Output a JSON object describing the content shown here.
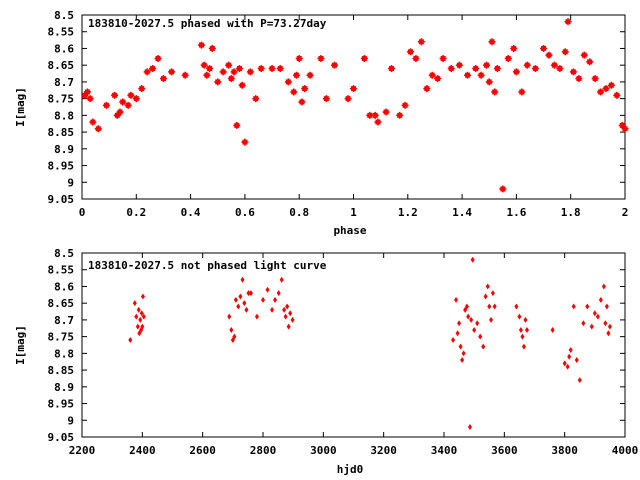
{
  "chart_data": [
    {
      "type": "scatter",
      "title": "183810-2027.5 phased with P=73.27day",
      "xlabel": "phase",
      "ylabel": "I[mag]",
      "xlim": [
        0,
        2
      ],
      "ylim": [
        9.05,
        8.5
      ],
      "y_inverted": true,
      "xticks": [
        "0",
        "0.2",
        "0.4",
        "0.6",
        "0.8",
        "1",
        "1.2",
        "1.4",
        "1.6",
        "1.8",
        "2"
      ],
      "yticks": [
        "8.5",
        "8.55",
        "8.6",
        "8.65",
        "8.7",
        "8.75",
        "8.8",
        "8.85",
        "8.9",
        "8.95",
        "9",
        "9.05"
      ],
      "marker_color": "#ff0000",
      "grid": false,
      "x": [
        0.01,
        0.02,
        0.03,
        0.04,
        0.06,
        0.09,
        0.12,
        0.13,
        0.14,
        0.15,
        0.17,
        0.18,
        0.2,
        0.22,
        0.24,
        0.26,
        0.28,
        0.3,
        0.33,
        0.38,
        0.44,
        0.45,
        0.46,
        0.47,
        0.48,
        0.5,
        0.52,
        0.54,
        0.55,
        0.56,
        0.57,
        0.58,
        0.59,
        0.6,
        0.62,
        0.64,
        0.66,
        0.7,
        0.73,
        0.76,
        0.78,
        0.79,
        0.8,
        0.81,
        0.82,
        0.84,
        0.88,
        0.9,
        0.93,
        0.98,
        1.0,
        1.04,
        1.06,
        1.08,
        1.09,
        1.12,
        1.14,
        1.17,
        1.19,
        1.21,
        1.23,
        1.25,
        1.27,
        1.29,
        1.31,
        1.33,
        1.36,
        1.39,
        1.42,
        1.45,
        1.47,
        1.49,
        1.5,
        1.51,
        1.52,
        1.53,
        1.55,
        1.57,
        1.59,
        1.6,
        1.62,
        1.64,
        1.67,
        1.7,
        1.72,
        1.74,
        1.76,
        1.78,
        1.79,
        1.81,
        1.83,
        1.85,
        1.87,
        1.89,
        1.91,
        1.93,
        1.95,
        1.97,
        1.99,
        2.0
      ],
      "y": [
        8.74,
        8.73,
        8.75,
        8.82,
        8.84,
        8.77,
        8.74,
        8.8,
        8.79,
        8.76,
        8.77,
        8.74,
        8.75,
        8.72,
        8.67,
        8.66,
        8.63,
        8.69,
        8.67,
        8.68,
        8.59,
        8.65,
        8.68,
        8.66,
        8.6,
        8.7,
        8.67,
        8.65,
        8.69,
        8.67,
        8.83,
        8.66,
        8.71,
        8.88,
        8.67,
        8.75,
        8.66,
        8.66,
        8.66,
        8.7,
        8.73,
        8.68,
        8.63,
        8.76,
        8.72,
        8.68,
        8.63,
        8.75,
        8.65,
        8.75,
        8.72,
        8.63,
        8.8,
        8.8,
        8.82,
        8.79,
        8.66,
        8.8,
        8.77,
        8.61,
        8.63,
        8.58,
        8.72,
        8.68,
        8.69,
        8.63,
        8.66,
        8.65,
        8.68,
        8.66,
        8.68,
        8.65,
        8.7,
        8.58,
        8.73,
        8.66,
        9.02,
        8.63,
        8.6,
        8.67,
        8.73,
        8.65,
        8.66,
        8.6,
        8.62,
        8.65,
        8.66,
        8.61,
        8.52,
        8.67,
        8.69,
        8.62,
        8.64,
        8.69,
        8.73,
        8.72,
        8.71,
        8.74,
        8.83,
        8.84
      ]
    },
    {
      "type": "scatter",
      "title": "183810-2027.5 not phased light curve",
      "xlabel": "hjd0",
      "ylabel": "I[mag]",
      "xlim": [
        2200,
        4000
      ],
      "ylim": [
        9.05,
        8.5
      ],
      "y_inverted": true,
      "xticks": [
        "2200",
        "2400",
        "2600",
        "2800",
        "3000",
        "3200",
        "3400",
        "3600",
        "3800",
        "4000"
      ],
      "yticks": [
        "8.5",
        "8.55",
        "8.6",
        "8.65",
        "8.7",
        "8.75",
        "8.8",
        "8.85",
        "8.9",
        "8.95",
        "9",
        "9.05"
      ],
      "marker_color": "#ff0000",
      "grid": false,
      "x": [
        2360,
        2375,
        2380,
        2385,
        2388,
        2390,
        2393,
        2396,
        2398,
        2400,
        2402,
        2405,
        2688,
        2695,
        2700,
        2705,
        2710,
        2718,
        2725,
        2732,
        2738,
        2745,
        2752,
        2760,
        2780,
        2800,
        2815,
        2830,
        2840,
        2852,
        2862,
        2870,
        2875,
        2880,
        2885,
        2890,
        2898,
        3430,
        3440,
        3445,
        3450,
        3455,
        3460,
        3465,
        3470,
        3476,
        3480,
        3486,
        3490,
        3495,
        3500,
        3510,
        3520,
        3530,
        3538,
        3545,
        3550,
        3556,
        3562,
        3568,
        3640,
        3650,
        3655,
        3660,
        3665,
        3670,
        3675,
        3760,
        3800,
        3810,
        3815,
        3820,
        3830,
        3840,
        3850,
        3862,
        3875,
        3890,
        3900,
        3910,
        3920,
        3930,
        3935,
        3940,
        3945,
        3950
      ],
      "y": [
        8.76,
        8.65,
        8.69,
        8.72,
        8.67,
        8.74,
        8.7,
        8.73,
        8.68,
        8.72,
        8.63,
        8.69,
        8.69,
        8.73,
        8.76,
        8.75,
        8.64,
        8.66,
        8.63,
        8.58,
        8.65,
        8.67,
        8.62,
        8.62,
        8.69,
        8.64,
        8.61,
        8.67,
        8.64,
        8.62,
        8.58,
        8.67,
        8.69,
        8.66,
        8.72,
        8.68,
        8.7,
        8.76,
        8.64,
        8.74,
        8.71,
        8.78,
        8.82,
        8.8,
        8.67,
        8.66,
        8.69,
        9.02,
        8.7,
        8.52,
        8.73,
        8.71,
        8.75,
        8.78,
        8.63,
        8.6,
        8.66,
        8.7,
        8.62,
        8.66,
        8.66,
        8.69,
        8.73,
        8.75,
        8.78,
        8.7,
        8.73,
        8.73,
        8.83,
        8.84,
        8.81,
        8.79,
        8.66,
        8.82,
        8.88,
        8.71,
        8.66,
        8.72,
        8.68,
        8.69,
        8.64,
        8.6,
        8.71,
        8.66,
        8.74,
        8.72
      ]
    }
  ]
}
